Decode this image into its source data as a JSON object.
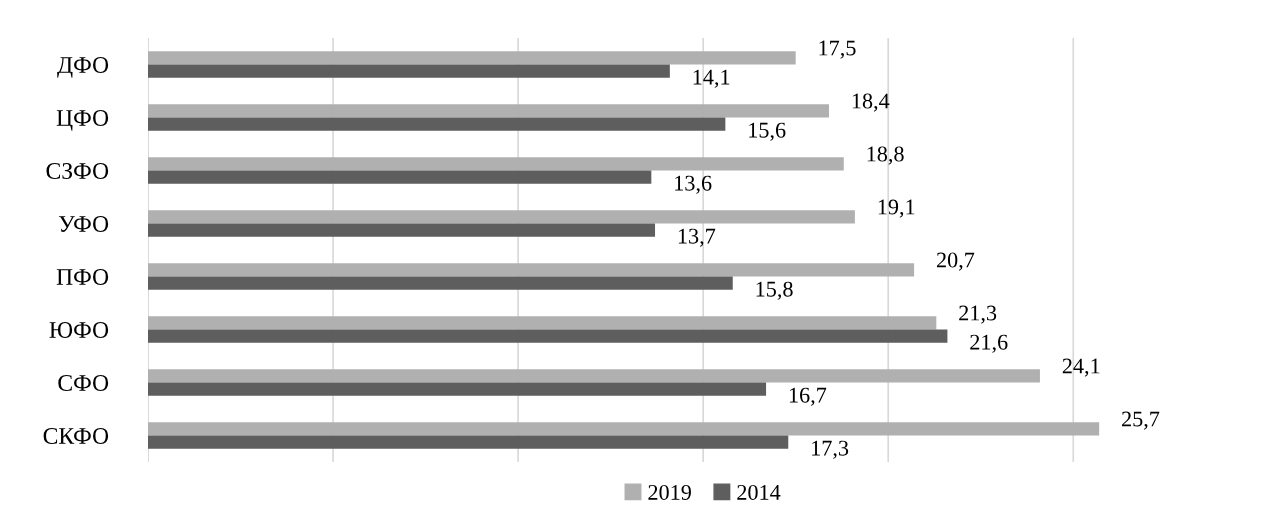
{
  "chart_data": {
    "type": "bar",
    "orientation": "horizontal",
    "categories": [
      "ДФО",
      "ЦФО",
      "СЗФО",
      "УФО",
      "ПФО",
      "ЮФО",
      "СФО",
      "СКФО"
    ],
    "series": [
      {
        "name": "2019",
        "color": "#b0b0b0",
        "values": [
          17.5,
          18.4,
          18.8,
          19.1,
          20.7,
          21.3,
          24.1,
          25.7
        ],
        "value_labels": [
          "17,5",
          "18,4",
          "18,8",
          "19,1",
          "20,7",
          "21,3",
          "24,1",
          "25,7"
        ]
      },
      {
        "name": "2014",
        "color": "#5e5e5e",
        "values": [
          14.1,
          15.6,
          13.6,
          13.7,
          15.8,
          21.6,
          16.7,
          17.3
        ],
        "value_labels": [
          "14,1",
          "15,6",
          "13,6",
          "13,7",
          "15,8",
          "21,6",
          "16,7",
          "17,3"
        ]
      }
    ],
    "grid": "x",
    "legend": "bottom"
  }
}
